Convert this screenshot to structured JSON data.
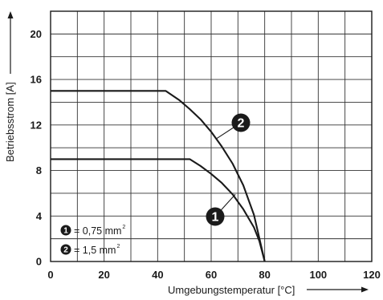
{
  "chart_data": {
    "type": "line",
    "xlabel": "Umgebungstemperatur [°C]",
    "ylabel": "Betriebsstrom [A]",
    "xlim": [
      0,
      120
    ],
    "ylim": [
      0,
      22
    ],
    "x_ticks": [
      "0",
      "20",
      "40",
      "60",
      "80",
      "100",
      "120"
    ],
    "y_ticks": [
      "0",
      "4",
      "8",
      "12",
      "16",
      "20"
    ],
    "grid": true,
    "series": [
      {
        "name": "1",
        "legend_label": "= 0,75 mm",
        "legend_sup": "2",
        "x": [
          0,
          52,
          56,
          60,
          64,
          68,
          72,
          76,
          78,
          80
        ],
        "y": [
          9,
          9,
          8.4,
          7.7,
          6.9,
          5.9,
          4.6,
          3.0,
          1.8,
          0
        ]
      },
      {
        "name": "2",
        "legend_label": "= 1,5 mm",
        "legend_sup": "2",
        "x": [
          0,
          43,
          48,
          52,
          56,
          60,
          64,
          68,
          72,
          76,
          80
        ],
        "y": [
          15,
          15,
          14.2,
          13.4,
          12.5,
          11.4,
          10.1,
          8.6,
          6.7,
          4.1,
          0
        ]
      }
    ],
    "legend_position": "bottom-left",
    "colors": {
      "line": "#1a1a1a",
      "grid": "#333333",
      "badge": "#1a1a1a"
    }
  }
}
